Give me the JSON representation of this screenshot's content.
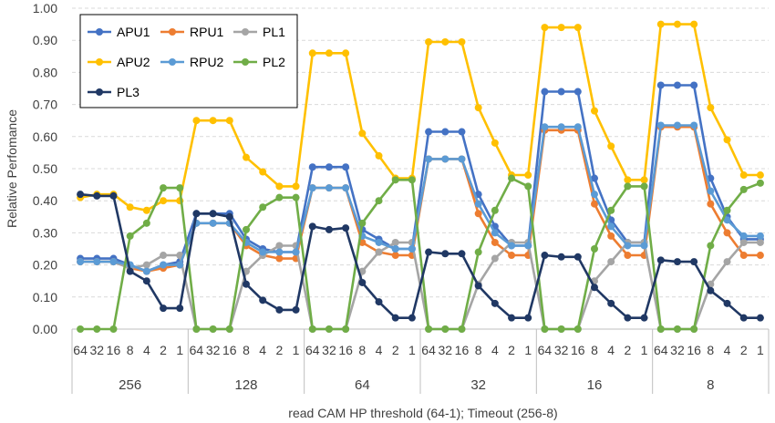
{
  "chart_data": {
    "type": "line",
    "xlabel": "read CAM HP threshold (64-1); Timeout (256-8)",
    "ylabel": "Relative Perfomance",
    "ylim": [
      0,
      1
    ],
    "y_ticks": [
      "0.00",
      "0.10",
      "0.20",
      "0.30",
      "0.40",
      "0.50",
      "0.60",
      "0.70",
      "0.80",
      "0.90",
      "1.00"
    ],
    "grid": "horizontal dashed",
    "legend_position": "top-left",
    "x_inner_labels": [
      "64",
      "32",
      "16",
      "8",
      "4",
      "2",
      "1"
    ],
    "x_outer_labels": [
      "256",
      "128",
      "64",
      "32",
      "16",
      "8"
    ],
    "series": [
      {
        "name": "APU1",
        "color": "#4472C4",
        "values": [
          0.22,
          0.22,
          0.22,
          0.2,
          0.18,
          0.2,
          0.21,
          0.36,
          0.36,
          0.36,
          0.28,
          0.25,
          0.24,
          0.24,
          0.505,
          0.505,
          0.505,
          0.31,
          0.28,
          0.25,
          0.25,
          0.615,
          0.615,
          0.615,
          0.42,
          0.32,
          0.26,
          0.26,
          0.74,
          0.74,
          0.74,
          0.47,
          0.34,
          0.27,
          0.27,
          0.76,
          0.76,
          0.76,
          0.47,
          0.35,
          0.28,
          0.28
        ]
      },
      {
        "name": "RPU1",
        "color": "#ED7D31",
        "values": [
          0.21,
          0.21,
          0.21,
          0.19,
          0.18,
          0.19,
          0.2,
          0.33,
          0.33,
          0.33,
          0.26,
          0.23,
          0.22,
          0.22,
          0.44,
          0.44,
          0.44,
          0.27,
          0.24,
          0.23,
          0.23,
          0.53,
          0.53,
          0.53,
          0.36,
          0.27,
          0.23,
          0.23,
          0.62,
          0.62,
          0.62,
          0.39,
          0.29,
          0.23,
          0.23,
          0.63,
          0.63,
          0.63,
          0.39,
          0.3,
          0.23,
          0.23
        ]
      },
      {
        "name": "PL1",
        "color": "#A5A5A5",
        "values": [
          0.21,
          0.21,
          0.21,
          0.19,
          0.2,
          0.23,
          0.23,
          0.0,
          0.0,
          0.0,
          0.18,
          0.23,
          0.26,
          0.26,
          0.0,
          0.0,
          0.0,
          0.18,
          0.24,
          0.27,
          0.27,
          0.0,
          0.0,
          0.0,
          0.14,
          0.22,
          0.27,
          0.27,
          0.0,
          0.0,
          0.0,
          0.15,
          0.21,
          0.27,
          0.27,
          0.0,
          0.0,
          0.0,
          0.14,
          0.21,
          0.27,
          0.27
        ]
      },
      {
        "name": "APU2",
        "color": "#FFC000",
        "values": [
          0.41,
          0.42,
          0.42,
          0.38,
          0.37,
          0.4,
          0.4,
          0.65,
          0.65,
          0.65,
          0.535,
          0.49,
          0.445,
          0.445,
          0.86,
          0.86,
          0.86,
          0.61,
          0.54,
          0.47,
          0.47,
          0.895,
          0.895,
          0.895,
          0.69,
          0.58,
          0.48,
          0.48,
          0.94,
          0.94,
          0.94,
          0.68,
          0.57,
          0.465,
          0.465,
          0.95,
          0.95,
          0.95,
          0.69,
          0.59,
          0.48,
          0.48
        ]
      },
      {
        "name": "RPU2",
        "color": "#5B9BD5",
        "values": [
          0.21,
          0.21,
          0.21,
          0.2,
          0.18,
          0.2,
          0.2,
          0.33,
          0.33,
          0.33,
          0.27,
          0.24,
          0.24,
          0.24,
          0.44,
          0.44,
          0.44,
          0.29,
          0.27,
          0.25,
          0.25,
          0.53,
          0.53,
          0.53,
          0.39,
          0.3,
          0.26,
          0.26,
          0.63,
          0.63,
          0.63,
          0.42,
          0.32,
          0.26,
          0.26,
          0.635,
          0.635,
          0.635,
          0.43,
          0.34,
          0.29,
          0.29
        ]
      },
      {
        "name": "PL2",
        "color": "#70AD47",
        "values": [
          0.0,
          0.0,
          0.0,
          0.29,
          0.33,
          0.44,
          0.44,
          0.0,
          0.0,
          0.0,
          0.31,
          0.38,
          0.41,
          0.41,
          0.0,
          0.0,
          0.0,
          0.33,
          0.4,
          0.465,
          0.465,
          0.0,
          0.0,
          0.0,
          0.24,
          0.37,
          0.47,
          0.445,
          0.0,
          0.0,
          0.0,
          0.25,
          0.37,
          0.445,
          0.445,
          0.0,
          0.0,
          0.0,
          0.26,
          0.37,
          0.435,
          0.455
        ]
      },
      {
        "name": "PL3",
        "color": "#203864",
        "values": [
          0.42,
          0.415,
          0.415,
          0.18,
          0.15,
          0.065,
          0.065,
          0.36,
          0.36,
          0.35,
          0.14,
          0.09,
          0.06,
          0.06,
          0.32,
          0.31,
          0.315,
          0.145,
          0.085,
          0.035,
          0.035,
          0.24,
          0.235,
          0.235,
          0.135,
          0.08,
          0.035,
          0.035,
          0.23,
          0.225,
          0.225,
          0.13,
          0.08,
          0.035,
          0.035,
          0.215,
          0.21,
          0.21,
          0.12,
          0.08,
          0.035,
          0.035
        ]
      }
    ]
  }
}
